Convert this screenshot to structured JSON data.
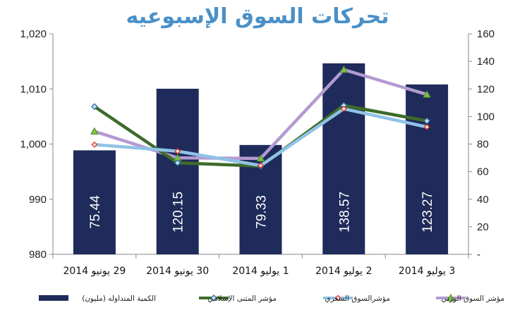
{
  "chart_data": {
    "type": "bar",
    "title": "تحركات السوق الإسبوعيه",
    "title_color": "#4a90c8",
    "categories": [
      "29 يونيو 2014",
      "30 يونيو 2014",
      "1 يوليو 2014",
      "2 يوليو 2014",
      "3 يوليو 2014"
    ],
    "left_axis": {
      "ylim": [
        980,
        1020
      ],
      "ticks": [
        "980",
        "990",
        "1,000",
        "1,010",
        "1,020"
      ],
      "tick_values": [
        980,
        990,
        1000,
        1010,
        1020
      ]
    },
    "right_axis": {
      "ylim": [
        0,
        160
      ],
      "ticks": [
        "-",
        "20",
        "40",
        "60",
        "80",
        "100",
        "120",
        "140",
        "160"
      ],
      "tick_values": [
        0,
        20,
        40,
        60,
        80,
        100,
        120,
        140,
        160
      ]
    },
    "series": [
      {
        "name": "الكمية المتداوله (مليون)",
        "type": "bar",
        "axis": "right",
        "color": "#1f2b5a",
        "values": [
          75.44,
          120.15,
          79.33,
          138.57,
          123.27
        ],
        "labels": [
          "75.44",
          "120.15",
          "79.33",
          "138.57",
          "123.27"
        ]
      },
      {
        "name": "مؤشر المثنى الإسلامي",
        "type": "line",
        "axis": "left",
        "color": "#3e6b2a",
        "marker": "diamond",
        "values": [
          1006.8,
          996.6,
          996.0,
          1007.0,
          1004.2
        ]
      },
      {
        "name": "مؤشرالسوق السعري",
        "type": "line",
        "axis": "left",
        "color": "#8fc3e6",
        "marker": "diamond-red",
        "values": [
          999.9,
          998.7,
          996.1,
          1006.4,
          1003.1
        ]
      },
      {
        "name": "مؤشر السوق الوزني",
        "type": "line",
        "axis": "left",
        "color": "#b39ad0",
        "marker": "triangle",
        "values": [
          1002.3,
          997.5,
          997.4,
          1013.5,
          1009.0
        ]
      }
    ],
    "grid": false,
    "legend_position": "bottom"
  }
}
